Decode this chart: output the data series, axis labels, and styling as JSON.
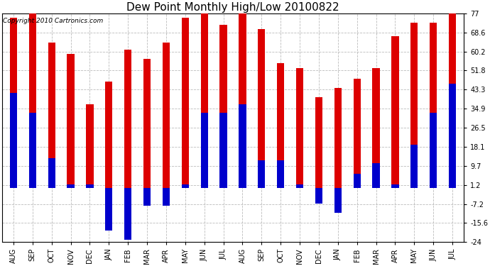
{
  "title": "Dew Point Monthly High/Low 20100822",
  "copyright": "Copyright 2010 Cartronics.com",
  "months": [
    "AUG",
    "SEP",
    "OCT",
    "NOV",
    "DEC",
    "JAN",
    "FEB",
    "MAR",
    "APR",
    "MAY",
    "JUN",
    "JUL",
    "AUG",
    "SEP",
    "OCT",
    "NOV",
    "DEC",
    "JAN",
    "FEB",
    "MAR",
    "APR",
    "MAY",
    "JUN",
    "JUL"
  ],
  "highs": [
    75.0,
    77.0,
    64.0,
    59.0,
    37.0,
    47.0,
    61.0,
    57.0,
    64.0,
    75.0,
    77.0,
    72.0,
    77.0,
    70.0,
    55.0,
    53.0,
    40.0,
    44.0,
    48.0,
    53.0,
    67.0,
    73.0,
    73.0,
    77.0
  ],
  "lows": [
    42.0,
    33.0,
    13.0,
    1.5,
    1.5,
    -19.0,
    -23.0,
    -8.0,
    -8.0,
    1.5,
    33.0,
    33.0,
    37.0,
    12.0,
    12.0,
    1.5,
    -7.0,
    -11.0,
    6.0,
    11.0,
    1.5,
    19.0,
    33.0,
    46.0
  ],
  "bar_color_high": "#dd0000",
  "bar_color_low": "#0000cc",
  "background_color": "#ffffff",
  "grid_color": "#bbbbbb",
  "yticks": [
    -24.0,
    -15.6,
    -7.2,
    1.2,
    9.7,
    18.1,
    26.5,
    34.9,
    43.3,
    51.8,
    60.2,
    68.6,
    77.0
  ],
  "ylim": [
    -24.0,
    77.0
  ],
  "title_fontsize": 11,
  "tick_fontsize": 7,
  "copyright_fontsize": 6.5
}
